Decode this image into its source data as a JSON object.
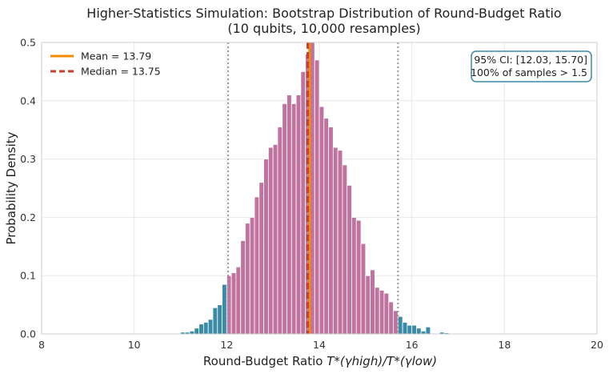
{
  "chart_data": {
    "type": "bar",
    "title_line1": "Higher-Statistics Simulation: Bootstrap Distribution of Round-Budget Ratio",
    "title_line2": "(10 qubits, 10,000 resamples)",
    "xlabel_main": "Round-Budget Ratio ",
    "xlabel_math": "T*(γhigh)/T*(γlow)",
    "ylabel": "Probability Density",
    "xlim": [
      8,
      20
    ],
    "ylim": [
      0,
      0.5
    ],
    "xticks": [
      "8",
      "10",
      "12",
      "14",
      "16",
      "18",
      "20"
    ],
    "yticks": [
      "0.0",
      "0.1",
      "0.2",
      "0.3",
      "0.4",
      "0.5"
    ],
    "grid": true,
    "bin_start": 11.0,
    "bin_width": 0.1,
    "ci_low": 12.03,
    "ci_high": 15.7,
    "mean": 13.79,
    "median": 13.75,
    "values": [
      0.003,
      0.003,
      0.005,
      0.01,
      0.017,
      0.02,
      0.025,
      0.045,
      0.05,
      0.085,
      0.1,
      0.105,
      0.115,
      0.16,
      0.19,
      0.2,
      0.235,
      0.26,
      0.3,
      0.32,
      0.325,
      0.355,
      0.395,
      0.41,
      0.395,
      0.41,
      0.45,
      0.48,
      0.5,
      0.47,
      0.39,
      0.37,
      0.355,
      0.32,
      0.315,
      0.29,
      0.255,
      0.2,
      0.195,
      0.155,
      0.1,
      0.11,
      0.08,
      0.075,
      0.07,
      0.055,
      0.04,
      0.03,
      0.02,
      0.015,
      0.015,
      0.01,
      0.005,
      0.012,
      0,
      0,
      0.003,
      0.002
    ],
    "colors": {
      "inside": "#C0739F",
      "outside": "#3A8BA8",
      "mean": "#F28C00",
      "median": "#C8402A",
      "ci_line": "#999999",
      "box_border": "#3A8BA8"
    },
    "legend": {
      "placement": "top-left",
      "mean_label": "Mean = 13.79",
      "median_label": "Median = 13.75"
    },
    "annotation": {
      "placement": "top-right",
      "line1": "95% CI: [12.03, 15.70]",
      "line2": "100% of samples > 1.5"
    }
  }
}
